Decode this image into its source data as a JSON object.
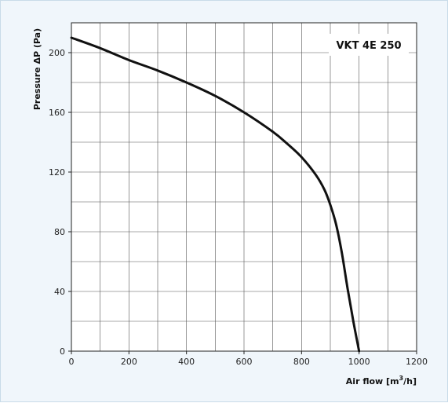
{
  "chart_data": {
    "type": "line",
    "model_label": "VKT 4E 250",
    "xlabel_main": "Air flow [m",
    "xlabel_sup": "3",
    "xlabel_end": "/h]",
    "ylabel": "Pressure ΔP (Pa)",
    "xlim": [
      0,
      1200
    ],
    "ylim": [
      0,
      220
    ],
    "xticks": [
      0,
      200,
      400,
      600,
      800,
      1000,
      1200
    ],
    "yticks": [
      0,
      40,
      80,
      120,
      160,
      200
    ],
    "grid": true,
    "x_minor_step": 100,
    "y_minor_step": 20,
    "series": [
      {
        "x": [
          0,
          100,
          200,
          300,
          400,
          500,
          600,
          700,
          750,
          800,
          850,
          880,
          900,
          920,
          940,
          960,
          980,
          1000
        ],
        "y": [
          210,
          203,
          195,
          188,
          180,
          171,
          160,
          147,
          139,
          130,
          118,
          108,
          98,
          85,
          66,
          42,
          20,
          0
        ]
      }
    ]
  }
}
